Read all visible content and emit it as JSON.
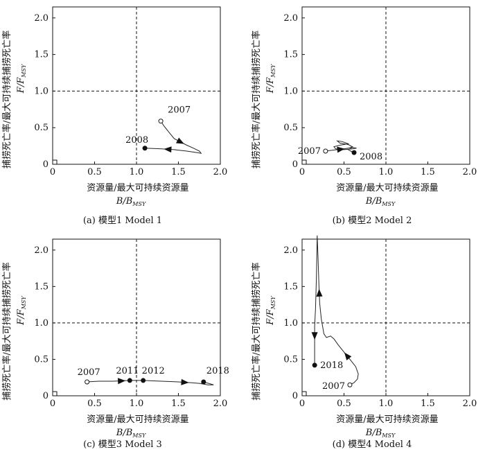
{
  "ylabel": "捕捞死亡率/最大可持续捕捞死亡率",
  "ylabel_f": "F/F",
  "ylabel_sub": "MSY",
  "xlabel": "资源量/最大可持续资源量",
  "xlabel_b": "B/B",
  "xlabel_sub": "MSY",
  "chart_data": [
    {
      "type": "line",
      "caption": "(a) 模型1 Model 1",
      "xlim": [
        0,
        2.0
      ],
      "ylim": [
        0,
        2.15
      ],
      "xticks": [
        "0",
        "0.5",
        "1.0",
        "1.5",
        "2.0"
      ],
      "yticks": [
        "0",
        "0.5",
        "1.0",
        "1.5",
        "2.0"
      ],
      "ref_x": 1.0,
      "ref_y": 1.0,
      "x": [
        1.29,
        1.33,
        1.4,
        1.45,
        1.6,
        1.68,
        1.75,
        1.77,
        1.72,
        1.6,
        1.45,
        1.3,
        1.1
      ],
      "y": [
        0.59,
        0.52,
        0.42,
        0.35,
        0.26,
        0.22,
        0.18,
        0.15,
        0.16,
        0.18,
        0.2,
        0.21,
        0.22
      ],
      "arrows": [
        3,
        10
      ],
      "points": [
        {
          "label": "2007",
          "x": 1.29,
          "y": 0.59,
          "filled": false
        },
        {
          "label": "2008",
          "x": 1.1,
          "y": 0.22,
          "filled": true
        }
      ]
    },
    {
      "type": "line",
      "caption": "(b) 模型2 Model 2",
      "xlim": [
        0,
        2.0
      ],
      "ylim": [
        0,
        2.15
      ],
      "xticks": [
        "0",
        "0.5",
        "1.0",
        "1.5",
        "2.0"
      ],
      "yticks": [
        "0",
        "0.5",
        "1.0",
        "1.5",
        "2.0"
      ],
      "ref_x": 1.0,
      "ref_y": 1.0,
      "x": [
        0.28,
        0.35,
        0.42,
        0.5,
        0.55,
        0.6,
        0.55,
        0.45,
        0.42,
        0.48,
        0.55,
        0.45,
        0.38,
        0.4,
        0.5,
        0.6,
        0.65,
        0.6,
        0.55,
        0.58,
        0.62
      ],
      "y": [
        0.18,
        0.19,
        0.2,
        0.21,
        0.22,
        0.24,
        0.27,
        0.29,
        0.32,
        0.31,
        0.28,
        0.26,
        0.24,
        0.21,
        0.2,
        0.21,
        0.22,
        0.23,
        0.2,
        0.18,
        0.16
      ],
      "arrows": [
        2
      ],
      "points": [
        {
          "label": "2007",
          "x": 0.28,
          "y": 0.18,
          "filled": false
        },
        {
          "label": "2008",
          "x": 0.62,
          "y": 0.16,
          "filled": true
        }
      ]
    },
    {
      "type": "line",
      "caption": "(c) 模型3 Model 3",
      "xlim": [
        0,
        2.0
      ],
      "ylim": [
        0,
        2.15
      ],
      "xticks": [
        "0",
        "0.5",
        "1.0",
        "1.5",
        "2.0"
      ],
      "yticks": [
        "0",
        "0.5",
        "1.0",
        "1.5",
        "2.0"
      ],
      "ref_x": 1.0,
      "ref_y": 1.0,
      "x": [
        0.41,
        0.55,
        0.72,
        0.92,
        1.08,
        1.3,
        1.5,
        1.65,
        1.75,
        1.85,
        1.92,
        1.8
      ],
      "y": [
        0.19,
        0.2,
        0.2,
        0.21,
        0.21,
        0.2,
        0.19,
        0.18,
        0.17,
        0.15,
        0.15,
        0.19
      ],
      "arrows": [
        2,
        6
      ],
      "points": [
        {
          "label": "2007",
          "x": 0.41,
          "y": 0.19,
          "filled": false
        },
        {
          "label": "2011",
          "x": 0.92,
          "y": 0.21,
          "filled": true
        },
        {
          "label": "2012",
          "x": 1.08,
          "y": 0.21,
          "filled": true
        },
        {
          "label": "2018",
          "x": 1.8,
          "y": 0.19,
          "filled": true
        }
      ]
    },
    {
      "type": "line",
      "caption": "(d) 模型4 Model 4",
      "xlim": [
        0,
        2.0
      ],
      "ylim": [
        0,
        2.15
      ],
      "xticks": [
        "0",
        "0.5",
        "1.0",
        "1.5",
        "2.0"
      ],
      "yticks": [
        "0",
        "0.5",
        "1.0",
        "1.5",
        "2.0"
      ],
      "ref_x": 1.0,
      "ref_y": 1.0,
      "x": [
        0.57,
        0.62,
        0.66,
        0.67,
        0.64,
        0.57,
        0.5,
        0.43,
        0.38,
        0.34,
        0.29,
        0.26,
        0.23,
        0.21,
        0.2,
        0.19,
        0.18,
        0.17,
        0.16,
        0.15,
        0.15,
        0.15
      ],
      "y": [
        0.15,
        0.18,
        0.23,
        0.3,
        0.4,
        0.5,
        0.6,
        0.7,
        0.78,
        0.82,
        0.8,
        0.85,
        1.05,
        1.27,
        1.55,
        1.9,
        2.2,
        1.6,
        1.2,
        0.95,
        0.7,
        0.42
      ],
      "arrows": [
        5,
        13,
        19
      ],
      "points": [
        {
          "label": "2007",
          "x": 0.57,
          "y": 0.15,
          "filled": false
        },
        {
          "label": "2018",
          "x": 0.15,
          "y": 0.42,
          "filled": true
        }
      ]
    }
  ]
}
